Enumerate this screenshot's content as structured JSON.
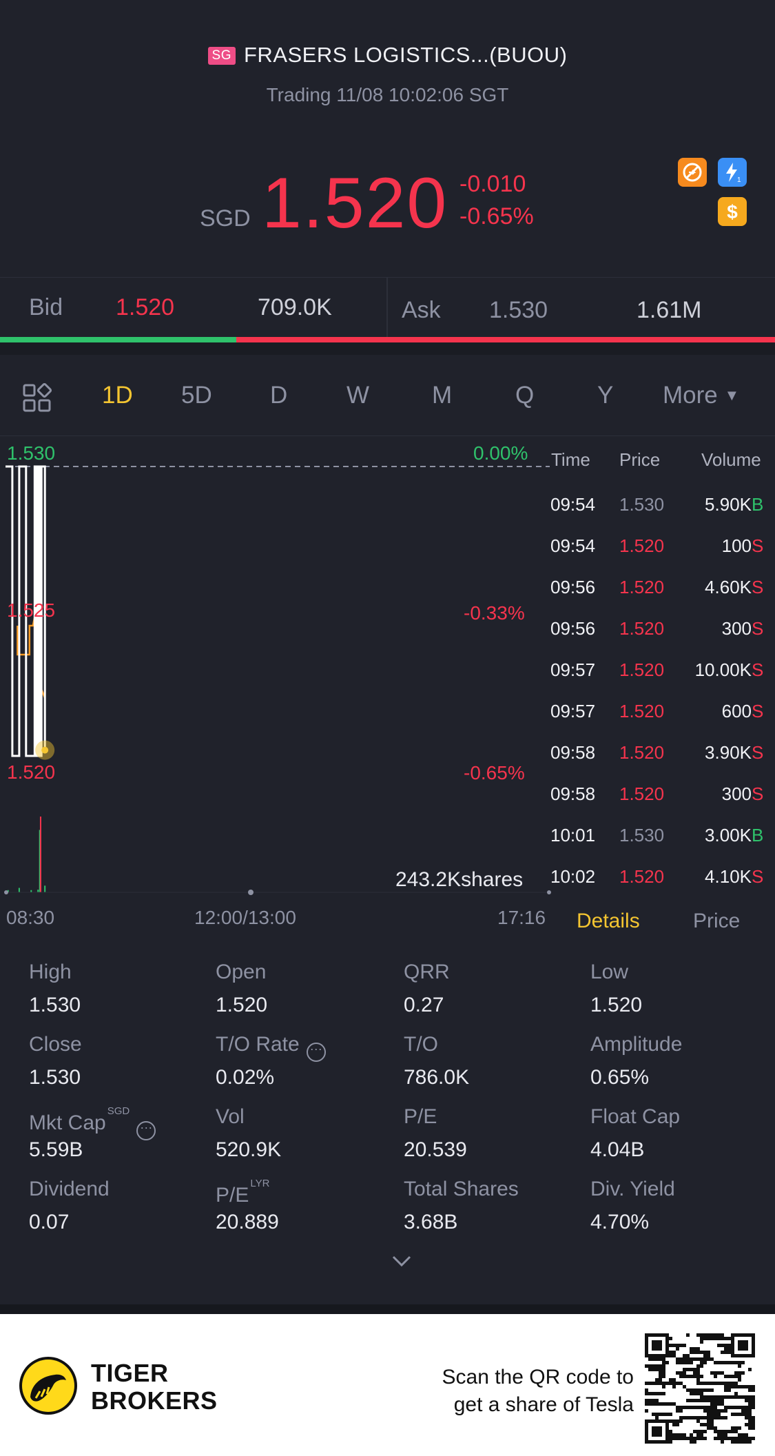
{
  "header": {
    "market_badge": "SG",
    "title": "FRASERS LOGISTICS...(BUOU)",
    "status": "Trading 11/08 10:02:06 SGT",
    "currency": "SGD",
    "price": "1.520",
    "change": "-0.010",
    "change_pct": "-0.65%"
  },
  "badges": [
    {
      "icon": "no-short-icon",
      "color": "#f68a1e"
    },
    {
      "icon": "lightning-1-icon",
      "color": "#3a8ff5"
    },
    {
      "icon": "dollar-icon",
      "color": "#f6a91e"
    }
  ],
  "quote": {
    "bid_label": "Bid",
    "bid_price": "1.520",
    "bid_size": "709.0K",
    "ask_label": "Ask",
    "ask_price": "1.530",
    "ask_size": "1.61M",
    "bid_ratio": 0.305
  },
  "tabs": [
    "1D",
    "5D",
    "D",
    "W",
    "M",
    "Q",
    "Y",
    "More"
  ],
  "active_tab": "1D",
  "chart_data": {
    "type": "line",
    "y_ticks": [
      "1.530",
      "1.525",
      "1.520"
    ],
    "pct_ticks": [
      "0.00%",
      "-0.33%",
      "-0.65%"
    ],
    "x_ticks": [
      "08:30",
      "12:00/13:00",
      "17:16"
    ],
    "ylim": [
      1.52,
      1.53
    ],
    "volume_label": "243.2Kshares",
    "price_series": [
      [
        0,
        1.53
      ],
      [
        0.4,
        1.53
      ],
      [
        0.4,
        1.52
      ],
      [
        0.8,
        1.52
      ],
      [
        0.8,
        1.53
      ],
      [
        1.2,
        1.53
      ],
      [
        1.2,
        1.52
      ],
      [
        1.7,
        1.52
      ],
      [
        1.7,
        1.53
      ],
      [
        1.8,
        1.53
      ],
      [
        1.8,
        1.52
      ],
      [
        1.9,
        1.52
      ],
      [
        1.9,
        1.53
      ],
      [
        2.0,
        1.53
      ],
      [
        2.0,
        1.52
      ],
      [
        2.1,
        1.52
      ],
      [
        2.1,
        1.53
      ],
      [
        2.3,
        1.53
      ],
      [
        2.3,
        1.5203
      ]
    ],
    "avg_series": [
      [
        0.7,
        1.5245
      ],
      [
        0.7,
        1.5235
      ],
      [
        1.2,
        1.5235
      ],
      [
        1.4,
        1.5235
      ],
      [
        1.4,
        1.5245
      ],
      [
        1.6,
        1.5245
      ],
      [
        1.7,
        1.5248
      ],
      [
        1.9,
        1.5248
      ],
      [
        1.9,
        1.5235
      ],
      [
        2.0,
        1.5235
      ],
      [
        2.1,
        1.5223
      ],
      [
        2.3,
        1.522
      ]
    ],
    "last_point": [
      2.3,
      1.5202
    ],
    "volume_bars": [
      {
        "x": 0.15,
        "v": 0.5,
        "side": "buy"
      },
      {
        "x": 0.8,
        "v": 1.0,
        "side": "buy"
      },
      {
        "x": 1.5,
        "v": 0.5,
        "side": "buy"
      },
      {
        "x": 1.9,
        "v": 0.6,
        "side": "buy"
      },
      {
        "x": 2.0,
        "v": 14.0,
        "side": "buy"
      },
      {
        "x": 2.05,
        "v": 17.0,
        "side": "sell"
      },
      {
        "x": 2.3,
        "v": 1.5,
        "side": "buy"
      }
    ],
    "volume_max": 17
  },
  "trades": {
    "headers": [
      "Time",
      "Price",
      "Volume"
    ],
    "rows": [
      {
        "time": "09:54",
        "price": "1.530",
        "volume": "5.90K",
        "side": "B"
      },
      {
        "time": "09:54",
        "price": "1.520",
        "volume": "100",
        "side": "S"
      },
      {
        "time": "09:56",
        "price": "1.520",
        "volume": "4.60K",
        "side": "S"
      },
      {
        "time": "09:56",
        "price": "1.520",
        "volume": "300",
        "side": "S"
      },
      {
        "time": "09:57",
        "price": "1.520",
        "volume": "10.00K",
        "side": "S"
      },
      {
        "time": "09:57",
        "price": "1.520",
        "volume": "600",
        "side": "S"
      },
      {
        "time": "09:58",
        "price": "1.520",
        "volume": "3.90K",
        "side": "S"
      },
      {
        "time": "09:58",
        "price": "1.520",
        "volume": "300",
        "side": "S"
      },
      {
        "time": "10:01",
        "price": "1.530",
        "volume": "3.00K",
        "side": "B"
      },
      {
        "time": "10:02",
        "price": "1.520",
        "volume": "4.10K",
        "side": "S"
      }
    ],
    "tab_details": "Details",
    "tab_price": "Price"
  },
  "stats": [
    {
      "label": "High",
      "value": "1.530"
    },
    {
      "label": "Open",
      "value": "1.520"
    },
    {
      "label": "QRR",
      "value": "0.27"
    },
    {
      "label": "Low",
      "value": "1.520"
    },
    {
      "label": "Close",
      "value": "1.530"
    },
    {
      "label": "T/O Rate",
      "value": "0.02%"
    },
    {
      "label": "T/O",
      "value": "786.0K"
    },
    {
      "label": "Amplitude",
      "value": "0.65%"
    },
    {
      "label": "Mkt Cap",
      "sup": "SGD",
      "value": "5.59B"
    },
    {
      "label": "Vol",
      "value": "520.9K"
    },
    {
      "label": "P/E",
      "value": "20.539"
    },
    {
      "label": "Float Cap",
      "value": "4.04B"
    },
    {
      "label": "Dividend",
      "value": "0.07"
    },
    {
      "label": "P/E",
      "sup": "LYR",
      "value": "20.889"
    },
    {
      "label": "Total Shares",
      "value": "3.68B"
    },
    {
      "label": "Div. Yield",
      "value": "4.70%"
    }
  ],
  "footer": {
    "brand_line1": "TIGER",
    "brand_line2": "BROKERS",
    "scan_line1": "Scan the QR code to",
    "scan_line2": "get a share of Tesla"
  }
}
